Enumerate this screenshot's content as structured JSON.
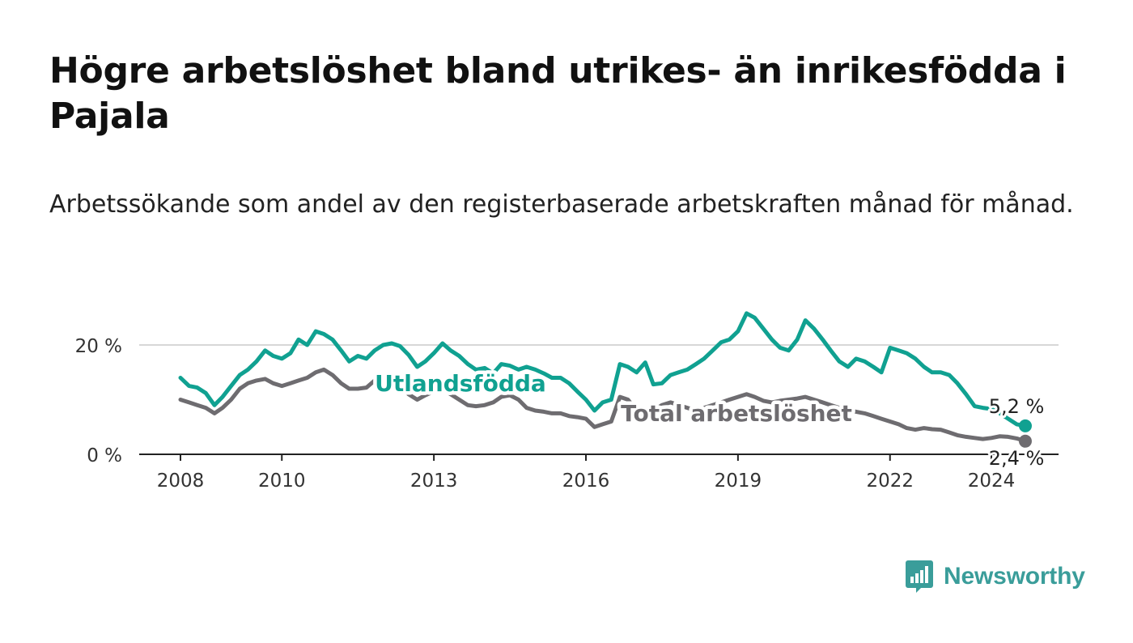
{
  "header": {
    "title": "Högre arbetslöshet bland utrikes- än inrikesfödda i Pajala",
    "subtitle": "Arbetssökande som andel av den registerbaserade arbetskraften månad för månad."
  },
  "brand": {
    "name": "Newsworthy",
    "icon": "newsworthy-logo-icon",
    "color": "#3a9d9a"
  },
  "chart_data": {
    "type": "line",
    "x_axis": {
      "ticks": [
        "2008",
        "2010",
        "2013",
        "2016",
        "2019",
        "2022",
        "2024"
      ]
    },
    "y_axis": {
      "range": [
        0,
        30
      ],
      "ticks": [
        0,
        20
      ],
      "tick_labels": [
        "0 %",
        "20 %"
      ],
      "grid": true
    },
    "legend": "inline labels",
    "series": [
      {
        "name": "Utlandsfödda",
        "color": "#10a191",
        "end_label": "5,2 %",
        "points": [
          [
            2008.0,
            14.0
          ],
          [
            2008.17,
            12.5
          ],
          [
            2008.33,
            12.2
          ],
          [
            2008.5,
            11.2
          ],
          [
            2008.67,
            9.0
          ],
          [
            2008.83,
            10.5
          ],
          [
            2009.0,
            12.5
          ],
          [
            2009.17,
            14.5
          ],
          [
            2009.33,
            15.5
          ],
          [
            2009.5,
            17.0
          ],
          [
            2009.67,
            19.0
          ],
          [
            2009.83,
            18.0
          ],
          [
            2010.0,
            17.5
          ],
          [
            2010.17,
            18.5
          ],
          [
            2010.33,
            21.0
          ],
          [
            2010.5,
            20.0
          ],
          [
            2010.67,
            22.5
          ],
          [
            2010.83,
            22.0
          ],
          [
            2011.0,
            21.0
          ],
          [
            2011.17,
            19.0
          ],
          [
            2011.33,
            17.0
          ],
          [
            2011.5,
            18.0
          ],
          [
            2011.67,
            17.5
          ],
          [
            2011.83,
            19.0
          ],
          [
            2012.0,
            20.0
          ],
          [
            2012.17,
            20.3
          ],
          [
            2012.33,
            19.8
          ],
          [
            2012.5,
            18.2
          ],
          [
            2012.67,
            16.0
          ],
          [
            2012.83,
            17.0
          ],
          [
            2013.0,
            18.5
          ],
          [
            2013.17,
            20.3
          ],
          [
            2013.33,
            19.0
          ],
          [
            2013.5,
            18.0
          ],
          [
            2013.67,
            16.5
          ],
          [
            2013.83,
            15.5
          ],
          [
            2014.0,
            15.8
          ],
          [
            2014.17,
            14.8
          ],
          [
            2014.33,
            16.5
          ],
          [
            2014.5,
            16.2
          ],
          [
            2014.67,
            15.5
          ],
          [
            2014.83,
            16.0
          ],
          [
            2015.0,
            15.5
          ],
          [
            2015.17,
            14.8
          ],
          [
            2015.33,
            14.0
          ],
          [
            2015.5,
            14.0
          ],
          [
            2015.67,
            13.0
          ],
          [
            2015.83,
            11.5
          ],
          [
            2016.0,
            10.0
          ],
          [
            2016.17,
            8.0
          ],
          [
            2016.33,
            9.5
          ],
          [
            2016.5,
            10.0
          ],
          [
            2016.67,
            16.5
          ],
          [
            2016.83,
            16.0
          ],
          [
            2017.0,
            15.0
          ],
          [
            2017.17,
            16.8
          ],
          [
            2017.33,
            12.8
          ],
          [
            2017.5,
            13.0
          ],
          [
            2017.67,
            14.5
          ],
          [
            2017.83,
            15.0
          ],
          [
            2018.0,
            15.5
          ],
          [
            2018.17,
            16.5
          ],
          [
            2018.33,
            17.5
          ],
          [
            2018.5,
            19.0
          ],
          [
            2018.67,
            20.5
          ],
          [
            2018.83,
            21.0
          ],
          [
            2019.0,
            22.5
          ],
          [
            2019.17,
            25.8
          ],
          [
            2019.33,
            25.0
          ],
          [
            2019.5,
            23.0
          ],
          [
            2019.67,
            21.0
          ],
          [
            2019.83,
            19.5
          ],
          [
            2020.0,
            19.0
          ],
          [
            2020.17,
            21.0
          ],
          [
            2020.33,
            24.5
          ],
          [
            2020.5,
            23.0
          ],
          [
            2020.67,
            21.0
          ],
          [
            2020.83,
            19.0
          ],
          [
            2021.0,
            17.0
          ],
          [
            2021.17,
            16.0
          ],
          [
            2021.33,
            17.5
          ],
          [
            2021.5,
            17.0
          ],
          [
            2021.67,
            16.0
          ],
          [
            2021.83,
            15.0
          ],
          [
            2022.0,
            19.5
          ],
          [
            2022.17,
            19.0
          ],
          [
            2022.33,
            18.5
          ],
          [
            2022.5,
            17.5
          ],
          [
            2022.67,
            16.0
          ],
          [
            2022.83,
            15.0
          ],
          [
            2023.0,
            15.0
          ],
          [
            2023.17,
            14.5
          ],
          [
            2023.33,
            13.0
          ],
          [
            2023.5,
            11.0
          ],
          [
            2023.67,
            8.8
          ],
          [
            2023.83,
            8.5
          ],
          [
            2024.0,
            8.3
          ],
          [
            2024.17,
            7.5
          ],
          [
            2024.33,
            6.5
          ],
          [
            2024.5,
            5.5
          ],
          [
            2024.67,
            5.2
          ]
        ]
      },
      {
        "name": "Total arbetslöshet",
        "color": "#6e6c70",
        "end_label": "2,4 %",
        "points": [
          [
            2008.0,
            10.0
          ],
          [
            2008.17,
            9.5
          ],
          [
            2008.33,
            9.0
          ],
          [
            2008.5,
            8.5
          ],
          [
            2008.67,
            7.5
          ],
          [
            2008.83,
            8.5
          ],
          [
            2009.0,
            10.0
          ],
          [
            2009.17,
            12.0
          ],
          [
            2009.33,
            13.0
          ],
          [
            2009.5,
            13.5
          ],
          [
            2009.67,
            13.8
          ],
          [
            2009.83,
            13.0
          ],
          [
            2010.0,
            12.5
          ],
          [
            2010.17,
            13.0
          ],
          [
            2010.33,
            13.5
          ],
          [
            2010.5,
            14.0
          ],
          [
            2010.67,
            15.0
          ],
          [
            2010.83,
            15.5
          ],
          [
            2011.0,
            14.5
          ],
          [
            2011.17,
            13.0
          ],
          [
            2011.33,
            12.0
          ],
          [
            2011.5,
            12.0
          ],
          [
            2011.67,
            12.2
          ],
          [
            2011.83,
            13.5
          ],
          [
            2012.0,
            14.2
          ],
          [
            2012.17,
            14.0
          ],
          [
            2012.33,
            13.0
          ],
          [
            2012.5,
            11.0
          ],
          [
            2012.67,
            10.0
          ],
          [
            2012.83,
            10.8
          ],
          [
            2013.0,
            11.5
          ],
          [
            2013.17,
            12.0
          ],
          [
            2013.33,
            11.0
          ],
          [
            2013.5,
            10.0
          ],
          [
            2013.67,
            9.0
          ],
          [
            2013.83,
            8.8
          ],
          [
            2014.0,
            9.0
          ],
          [
            2014.17,
            9.5
          ],
          [
            2014.33,
            10.5
          ],
          [
            2014.5,
            10.8
          ],
          [
            2014.67,
            10.0
          ],
          [
            2014.83,
            8.5
          ],
          [
            2015.0,
            8.0
          ],
          [
            2015.17,
            7.8
          ],
          [
            2015.33,
            7.5
          ],
          [
            2015.5,
            7.5
          ],
          [
            2015.67,
            7.0
          ],
          [
            2015.83,
            6.8
          ],
          [
            2016.0,
            6.5
          ],
          [
            2016.17,
            5.0
          ],
          [
            2016.33,
            5.5
          ],
          [
            2016.5,
            6.0
          ],
          [
            2016.67,
            10.5
          ],
          [
            2016.83,
            10.0
          ],
          [
            2017.0,
            8.0
          ],
          [
            2017.17,
            7.0
          ],
          [
            2017.33,
            8.0
          ],
          [
            2017.5,
            9.0
          ],
          [
            2017.67,
            9.5
          ],
          [
            2017.83,
            9.0
          ],
          [
            2018.0,
            8.5
          ],
          [
            2018.17,
            8.0
          ],
          [
            2018.33,
            8.5
          ],
          [
            2018.5,
            9.0
          ],
          [
            2018.67,
            9.5
          ],
          [
            2018.83,
            10.0
          ],
          [
            2019.0,
            10.5
          ],
          [
            2019.17,
            11.0
          ],
          [
            2019.33,
            10.5
          ],
          [
            2019.5,
            9.8
          ],
          [
            2019.67,
            9.5
          ],
          [
            2019.83,
            9.8
          ],
          [
            2020.0,
            10.0
          ],
          [
            2020.17,
            10.2
          ],
          [
            2020.33,
            10.5
          ],
          [
            2020.5,
            10.0
          ],
          [
            2020.67,
            9.5
          ],
          [
            2020.83,
            9.0
          ],
          [
            2021.0,
            8.5
          ],
          [
            2021.17,
            8.0
          ],
          [
            2021.33,
            7.8
          ],
          [
            2021.5,
            7.5
          ],
          [
            2021.67,
            7.0
          ],
          [
            2021.83,
            6.5
          ],
          [
            2022.0,
            6.0
          ],
          [
            2022.17,
            5.5
          ],
          [
            2022.33,
            4.8
          ],
          [
            2022.5,
            4.5
          ],
          [
            2022.67,
            4.8
          ],
          [
            2022.83,
            4.6
          ],
          [
            2023.0,
            4.5
          ],
          [
            2023.17,
            4.0
          ],
          [
            2023.33,
            3.5
          ],
          [
            2023.5,
            3.2
          ],
          [
            2023.67,
            3.0
          ],
          [
            2023.83,
            2.8
          ],
          [
            2024.0,
            3.0
          ],
          [
            2024.17,
            3.3
          ],
          [
            2024.33,
            3.2
          ],
          [
            2024.5,
            2.9
          ],
          [
            2024.67,
            2.4
          ]
        ]
      }
    ]
  }
}
